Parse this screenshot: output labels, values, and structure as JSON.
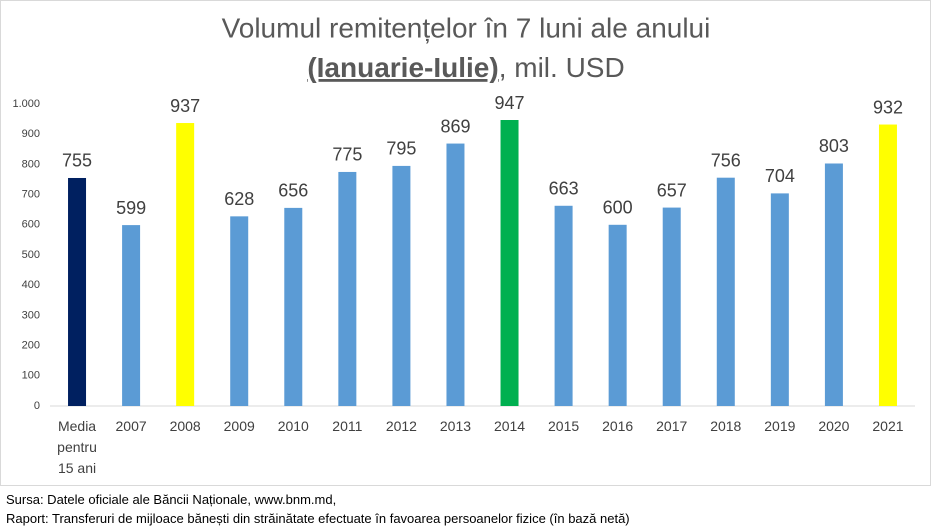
{
  "chart_data": {
    "type": "bar",
    "title": "Volumul remitențelor în 7 luni ale anului",
    "title_emphasis": "(Ianuarie-Iulie)",
    "title_rest": ", mil. USD",
    "categories": [
      "Media pentru 15 ani",
      "2007",
      "2008",
      "2009",
      "2010",
      "2011",
      "2012",
      "2013",
      "2014",
      "2015",
      "2016",
      "2017",
      "2018",
      "2019",
      "2020",
      "2021"
    ],
    "values": [
      755,
      599,
      937,
      628,
      656,
      775,
      795,
      869,
      947,
      663,
      600,
      657,
      756,
      704,
      803,
      932
    ],
    "colors": [
      "#002060",
      "#5b9bd5",
      "#ffff00",
      "#5b9bd5",
      "#5b9bd5",
      "#5b9bd5",
      "#5b9bd5",
      "#5b9bd5",
      "#00b050",
      "#5b9bd5",
      "#5b9bd5",
      "#5b9bd5",
      "#5b9bd5",
      "#5b9bd5",
      "#5b9bd5",
      "#ffff00"
    ],
    "ylim": [
      0,
      1000
    ],
    "yticks": [
      0,
      100,
      200,
      300,
      400,
      500,
      600,
      700,
      800,
      900,
      {
        "value": 1000,
        "label": "1.000"
      }
    ],
    "grid": false,
    "source": "Sursa: Datele oficiale ale Băncii Naționale, www.bnm.md,",
    "note": "Raport: Transferuri de mijloace bănești din străinătate efectuate în favoarea persoanelor fizice (în bază netă)"
  }
}
